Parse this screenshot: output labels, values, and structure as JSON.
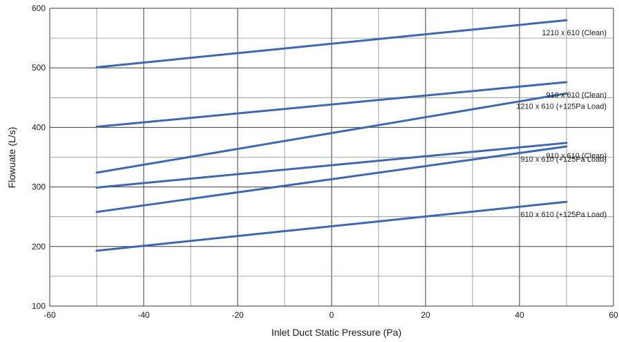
{
  "chart_data": {
    "type": "line",
    "xlabel": "Inlet Duct Static Pressure (Pa)",
    "ylabel": "Flowuate (L/s)",
    "xlim": [
      -60,
      60
    ],
    "ylim": [
      100,
      600
    ],
    "x_ticks": [
      "-60",
      "-40",
      "-20",
      "0",
      "20",
      "40",
      "60"
    ],
    "y_ticks": [
      "100",
      "200",
      "300",
      "400",
      "500",
      "600"
    ],
    "grid": true,
    "line_color": "#3d68b0",
    "series": [
      {
        "name": "1210 x 610 (Clean)",
        "x": [
          -50,
          50
        ],
        "y": [
          501,
          580
        ]
      },
      {
        "name": "910 x 610 (Clean)",
        "x": [
          -50,
          50
        ],
        "y": [
          401,
          476
        ]
      },
      {
        "name": "1210 x 610 (+125Pa Load)",
        "x": [
          -50,
          50
        ],
        "y": [
          324,
          457
        ]
      },
      {
        "name": "910 x 610 (Clean)",
        "x": [
          -50,
          50
        ],
        "y": [
          299,
          374
        ]
      },
      {
        "name": "910 x 610 (+125Pa Load)",
        "x": [
          -50,
          50
        ],
        "y": [
          258,
          368
        ]
      },
      {
        "name": "610 x 610 (+125Pa Load)",
        "x": [
          -50,
          50
        ],
        "y": [
          193,
          275
        ]
      }
    ]
  }
}
